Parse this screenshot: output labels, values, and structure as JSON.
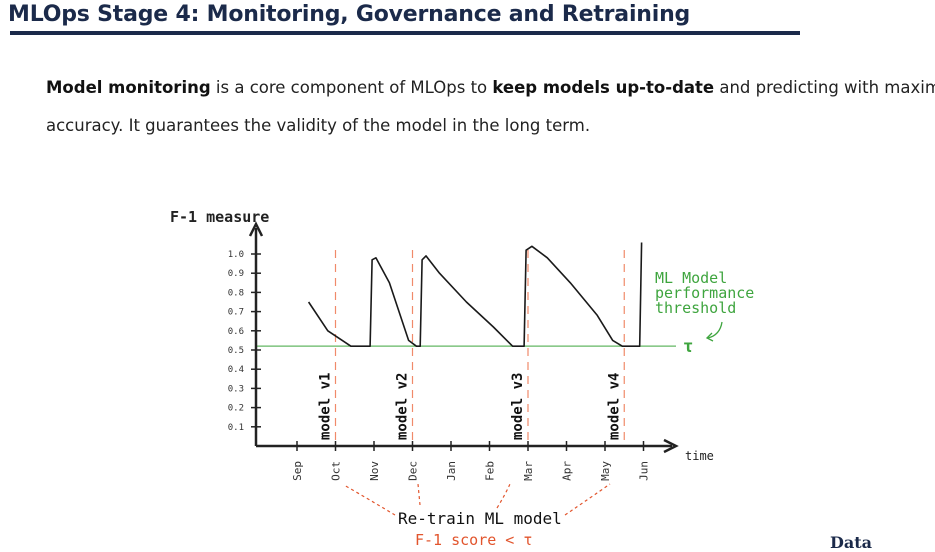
{
  "slide": {
    "title": "MLOps Stage 4: Monitoring, Governance and Retraining",
    "paragraph": {
      "line1_bold1": "Model monitoring",
      "line1_text1": " is a core component of MLOps to ",
      "line1_bold2": "keep models up-to-date",
      "line1_text2": " and predicting with maximum",
      "line2": "accuracy. It guarantees the validity of the model in the long term."
    },
    "logo_text": "Data"
  },
  "chart_data": {
    "type": "line",
    "ylabel": "F-1 measure",
    "xlabel": "time",
    "y_ticks": [
      "0.1",
      "0.2",
      "0.3",
      "0.4",
      "0.5",
      "0.6",
      "0.7",
      "0.8",
      "0.9",
      "1.0"
    ],
    "categories": [
      "Sep",
      "Oct",
      "Nov",
      "Dec",
      "Jan",
      "Feb",
      "Mar",
      "Apr",
      "May",
      "Jun"
    ],
    "threshold": {
      "value": 0.52,
      "symbol": "τ",
      "label": [
        "ML Model",
        "performance",
        "threshold"
      ]
    },
    "model_versions": [
      {
        "label": "model v1",
        "month_index": 1
      },
      {
        "label": "model v2",
        "month_index": 3
      },
      {
        "label": "model v3",
        "month_index": 6
      },
      {
        "label": "model v4",
        "month_index": 8.5
      }
    ],
    "series": [
      {
        "values": [
          [
            0.3,
            0.75
          ],
          [
            0.8,
            0.6
          ],
          [
            1.4,
            0.52
          ],
          [
            1.9,
            0.52
          ],
          [
            1.95,
            0.97
          ],
          [
            2.05,
            0.98
          ],
          [
            2.4,
            0.85
          ],
          [
            2.9,
            0.55
          ],
          [
            3.1,
            0.52
          ],
          [
            3.2,
            0.52
          ],
          [
            3.25,
            0.97
          ],
          [
            3.35,
            0.99
          ],
          [
            3.7,
            0.9
          ],
          [
            4.4,
            0.75
          ],
          [
            5.1,
            0.62
          ],
          [
            5.6,
            0.52
          ],
          [
            5.9,
            0.52
          ],
          [
            5.95,
            1.02
          ],
          [
            6.1,
            1.04
          ],
          [
            6.5,
            0.98
          ],
          [
            7.1,
            0.85
          ],
          [
            7.8,
            0.68
          ],
          [
            8.2,
            0.55
          ],
          [
            8.45,
            0.52
          ],
          [
            8.9,
            0.52
          ],
          [
            8.95,
            1.06
          ]
        ]
      }
    ],
    "annotations": {
      "retrain": "Re-train ML model",
      "condition": "F-1 score < τ"
    },
    "colors": {
      "axis": "#222222",
      "line": "#1a1a1a",
      "threshold": "#63b763",
      "marker": "#f08a6a",
      "annotation_red": "#e2552d",
      "annotation_green": "#3fa53f"
    }
  }
}
